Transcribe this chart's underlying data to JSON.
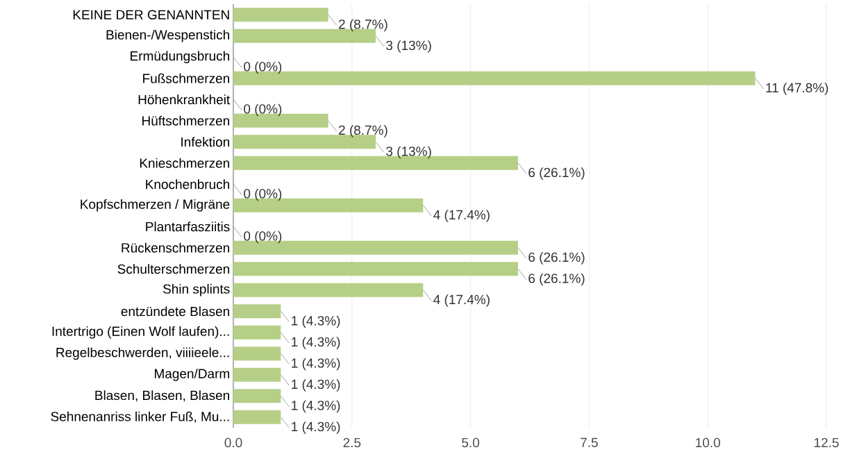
{
  "chart_data": {
    "type": "bar",
    "orientation": "horizontal",
    "color": "#b6cf87",
    "grid": "x",
    "categories": [
      "KEINE DER GENANNTEN",
      "Bienen-/Wespenstich",
      "Ermüdungsbruch",
      "Fußschmerzen",
      "Höhenkrankheit",
      "Hüftschmerzen",
      "Infektion",
      "Knieschmerzen",
      "Knochenbruch",
      "Kopfschmerzen / Migräne",
      "Plantarfasziitis",
      "Rückenschmerzen",
      "Schulterschmerzen",
      "Shin splints",
      "entzündete Blasen",
      "Intertrigo (Einen Wolf laufen)...",
      "Regelbeschwerden, viiiieele...",
      "Magen/Darm",
      "Blasen, Blasen, Blasen",
      "Sehnenanriss linker Fuß, Mu..."
    ],
    "values": [
      2,
      3,
      0,
      11,
      0,
      2,
      3,
      6,
      0,
      4,
      0,
      6,
      6,
      4,
      1,
      1,
      1,
      1,
      1,
      1
    ],
    "value_labels": [
      "2 (8.7%)",
      "3 (13%)",
      "0 (0%)",
      "11 (47.8%)",
      "0 (0%)",
      "2 (8.7%)",
      "3 (13%)",
      "6 (26.1%)",
      "0 (0%)",
      "4 (17.4%)",
      "0 (0%)",
      "6 (26.1%)",
      "6 (26.1%)",
      "4 (17.4%)",
      "1 (4.3%)",
      "1 (4.3%)",
      "1 (4.3%)",
      "1 (4.3%)",
      "1 (4.3%)",
      "1 (4.3%)"
    ],
    "xlim": [
      0,
      12.5
    ],
    "xticks": [
      {
        "value": 0,
        "label": "0.0"
      },
      {
        "value": 2.5,
        "label": "2.5"
      },
      {
        "value": 5,
        "label": "5.0"
      },
      {
        "value": 7.5,
        "label": "7.5"
      },
      {
        "value": 10,
        "label": "10.0"
      },
      {
        "value": 12.5,
        "label": "12.5"
      }
    ]
  }
}
